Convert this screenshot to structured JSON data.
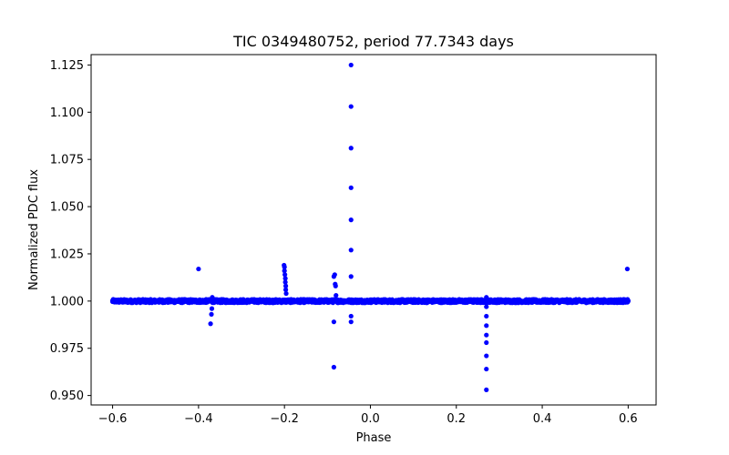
{
  "chart_data": {
    "type": "scatter",
    "title": "TIC 0349480752, period 77.7343 days",
    "xlabel": "Phase",
    "ylabel": "Normalized PDC flux",
    "xlim": [
      -0.65,
      0.665
    ],
    "ylim": [
      0.945,
      1.1305
    ],
    "grid": false,
    "x_ticks": [
      -0.6,
      -0.4,
      -0.2,
      0.0,
      0.2,
      0.4,
      0.6
    ],
    "x_tick_labels": [
      "−0.6",
      "−0.4",
      "−0.2",
      "0.0",
      "0.2",
      "0.4",
      "0.6"
    ],
    "y_ticks": [
      0.95,
      0.975,
      1.0,
      1.025,
      1.05,
      1.075,
      1.1,
      1.125
    ],
    "y_tick_labels": [
      "0.950",
      "0.975",
      "1.000",
      "1.025",
      "1.050",
      "1.075",
      "1.100",
      "1.125"
    ],
    "marker_color": "#0000ff",
    "baseline": {
      "name": "folded light curve baseline",
      "x_start": -0.6,
      "x_end": 0.6,
      "step": 0.0015,
      "flux": 1.0,
      "scatter": 0.0009
    },
    "series": [
      {
        "name": "spike near -0.045",
        "x": [
          -0.045,
          -0.045,
          -0.045,
          -0.045,
          -0.045,
          -0.045,
          -0.045,
          -0.045,
          -0.045
        ],
        "y": [
          1.125,
          1.103,
          1.081,
          1.06,
          1.043,
          1.027,
          1.013,
          0.992,
          0.989
        ]
      },
      {
        "name": "dip near 0.27",
        "x": [
          0.27,
          0.27,
          0.27,
          0.27,
          0.27,
          0.27,
          0.27,
          0.27,
          0.27
        ],
        "y": [
          0.953,
          0.964,
          0.971,
          0.978,
          0.982,
          0.987,
          0.992,
          0.997,
          1.002
        ]
      },
      {
        "name": "feature near -0.2",
        "x": [
          -0.201,
          -0.2,
          -0.2,
          -0.199,
          -0.198,
          -0.198,
          -0.197,
          -0.197,
          -0.196
        ],
        "y": [
          1.019,
          1.018,
          1.016,
          1.014,
          1.012,
          1.01,
          1.008,
          1.006,
          1.004
        ]
      },
      {
        "name": "feature near -0.08",
        "x": [
          -0.085,
          -0.083,
          -0.082,
          -0.081,
          -0.08,
          -0.085,
          -0.085
        ],
        "y": [
          1.013,
          1.014,
          1.009,
          1.008,
          1.003,
          0.989,
          0.965
        ]
      },
      {
        "name": "feature near -0.37",
        "x": [
          -0.372,
          -0.37,
          -0.369,
          -0.368
        ],
        "y": [
          0.988,
          0.993,
          0.996,
          1.002
        ]
      },
      {
        "name": "isolated outliers",
        "x": [
          -0.4,
          0.598
        ],
        "y": [
          1.017,
          1.017
        ]
      }
    ]
  }
}
